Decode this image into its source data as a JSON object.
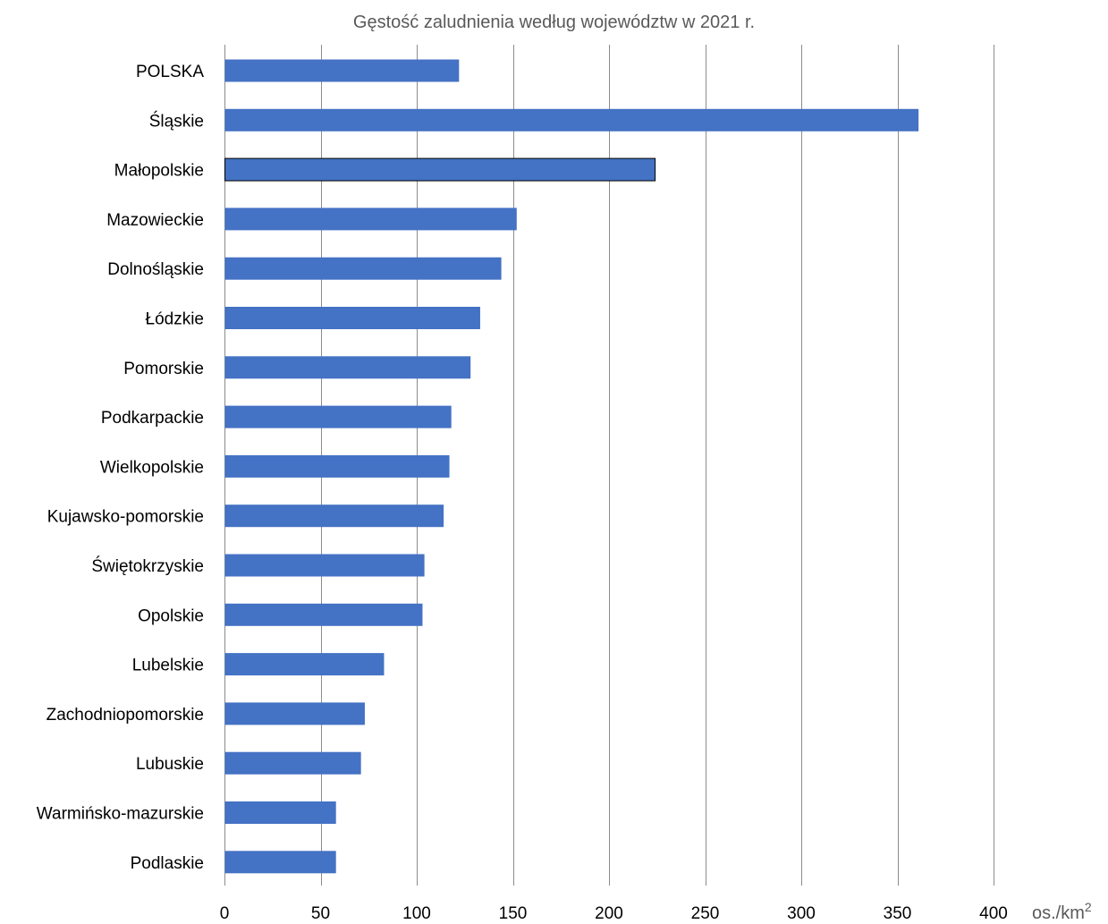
{
  "chart_data": {
    "type": "bar",
    "orientation": "horizontal",
    "title": "Gęstość zaludnienia według województw w 2021 r.",
    "xlabel": "os./km",
    "xlabel_superscript": "2",
    "ylabel": "",
    "categories": [
      "POLSKA",
      "Śląskie",
      "Małopolskie",
      "Mazowieckie",
      "Dolnośląskie",
      "Łódzkie",
      "Pomorskie",
      "Podkarpackie",
      "Wielkopolskie",
      "Kujawsko-pomorskie",
      "Świętokrzyskie",
      "Opolskie",
      "Lubelskie",
      "Zachodniopomorskie",
      "Lubuskie",
      "Warmińsko-mazurskie",
      "Podlaskie"
    ],
    "values": [
      122,
      361,
      224,
      152,
      144,
      133,
      128,
      118,
      117,
      114,
      104,
      103,
      83,
      73,
      71,
      58,
      58
    ],
    "highlighted_category": "Małopolskie",
    "xlim": [
      0,
      400
    ],
    "xticks": [
      0,
      50,
      100,
      150,
      200,
      250,
      300,
      350,
      400
    ],
    "grid": true,
    "legend": "none",
    "bar_color": "#4472C4",
    "highlight_stroke_color": "#000000"
  }
}
